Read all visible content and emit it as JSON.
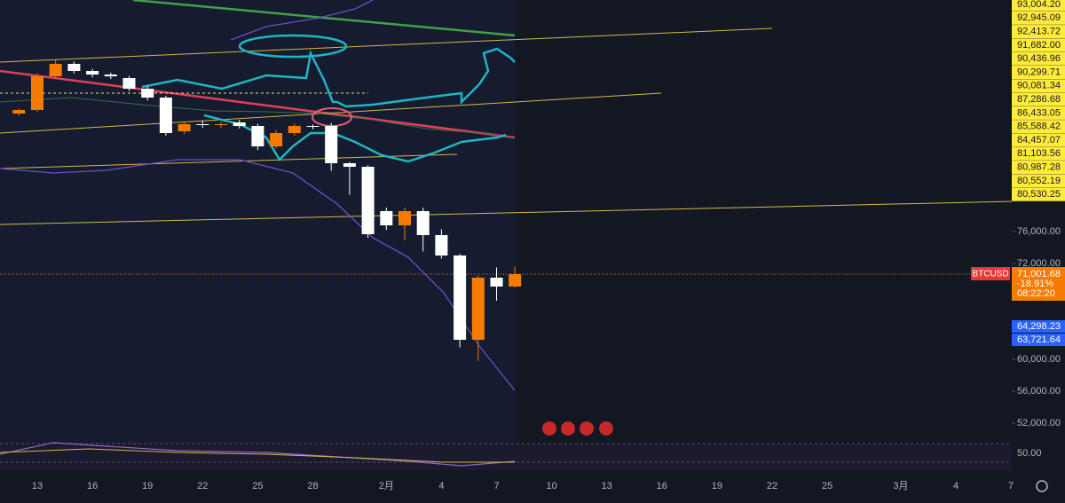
{
  "chart_data": {
    "type": "candlestick",
    "categories": [
      null,
      "13",
      null,
      null,
      "16",
      null,
      null,
      "19",
      null,
      null,
      "22",
      null,
      null,
      "25",
      null,
      null,
      "28",
      null,
      null,
      null,
      "2月",
      null,
      null,
      "4",
      null,
      null,
      "7",
      null,
      null,
      "10",
      null,
      null,
      "13",
      null,
      null,
      "16",
      null,
      null,
      "19",
      null,
      null,
      "22",
      null,
      null,
      "25",
      null,
      null,
      null,
      "3月",
      null,
      null,
      "4",
      null,
      null,
      "7"
    ],
    "open": [
      90778,
      91222,
      95444,
      97000,
      96111,
      95667,
      95222,
      93889,
      92778,
      88556,
      89444,
      89333,
      89667,
      89222,
      86667,
      88333,
      89222,
      89222,
      84556,
      84111,
      78556,
      76778,
      78556,
      75556,
      73000,
      62444,
      70222,
      69111,
      null,
      null,
      null,
      null,
      null,
      null,
      null,
      null,
      null,
      null,
      null,
      null,
      null,
      null,
      null,
      null,
      null,
      null,
      null,
      null,
      null,
      null,
      null,
      null,
      null,
      null,
      null
    ],
    "high": [
      91400,
      95800,
      97500,
      97300,
      96400,
      95900,
      95500,
      94200,
      93000,
      89800,
      89900,
      89700,
      90000,
      89500,
      88700,
      89500,
      89400,
      89600,
      84700,
      84300,
      79000,
      79000,
      79000,
      76300,
      73200,
      70500,
      71500,
      71600,
      null,
      null,
      null,
      null,
      null,
      null,
      null,
      null,
      null,
      null,
      null,
      null,
      null,
      null,
      null,
      null,
      null,
      null,
      null,
      null,
      null,
      null,
      null,
      null,
      null,
      null,
      null
    ],
    "low": [
      90500,
      91000,
      95200,
      95800,
      95300,
      95100,
      93600,
      92400,
      88000,
      88200,
      89000,
      89000,
      88900,
      86200,
      86400,
      88000,
      88800,
      83600,
      80600,
      75200,
      76200,
      74900,
      73500,
      72600,
      61500,
      59778,
      67333,
      69000,
      null,
      null,
      null,
      null,
      null,
      null,
      null,
      null,
      null,
      null,
      null,
      null,
      null,
      null,
      null,
      null,
      null,
      null,
      null,
      null,
      null,
      null,
      null,
      null,
      null,
      null,
      null
    ],
    "close": [
      91222,
      95444,
      97000,
      96111,
      95667,
      95444,
      93889,
      92778,
      88333,
      89444,
      89333,
      89444,
      89222,
      86667,
      88333,
      89222,
      89111,
      84556,
      84111,
      75667,
      76778,
      78556,
      75556,
      73000,
      62444,
      70222,
      69111,
      70667,
      null,
      null,
      null,
      null,
      null,
      null,
      null,
      null,
      null,
      null,
      null,
      null,
      null,
      null,
      null,
      null,
      null,
      null,
      null,
      null,
      null,
      null,
      null,
      null,
      null,
      null,
      null
    ],
    "up_color": "#f57c00",
    "down_color": "#ffffff",
    "ylim": [
      49444,
      105000
    ],
    "yticks": [
      {
        "value": 76000,
        "label": "76,000.00"
      },
      {
        "value": 72000,
        "label": "72,000.00"
      },
      {
        "value": 60000,
        "label": "60,000.00"
      },
      {
        "value": 56000,
        "label": "56,000.00"
      },
      {
        "value": 52000,
        "label": "52,000.00"
      }
    ],
    "price_labels": [
      "93,004.20",
      "92,945.09",
      "92,413.72",
      "91,682.00",
      "90,436.96",
      "90,299.71",
      "90,081.34",
      "87,286.68",
      "86,433.05",
      "85,588.42",
      "84,457.07",
      "81,103.56",
      "80,987.28",
      "80,552.19",
      "80,530.25"
    ],
    "symbol": "BTCUSD",
    "last_price": "71,001.68",
    "change": "-18.91%",
    "countdown": "08:22:20",
    "blue_labels": [
      "64,298.23",
      "63,721.64"
    ],
    "indicator_level": "50.00"
  }
}
